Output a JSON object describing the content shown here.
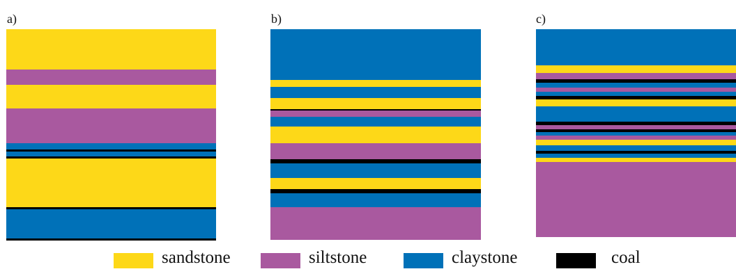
{
  "colors": {
    "sandstone": "#fdd818",
    "siltstone": "#a9599f",
    "claystone": "#0071b8",
    "coal": "#000000"
  },
  "panels": [
    {
      "label": "a)",
      "layers": [
        "sandstone",
        "siltstone",
        "sandstone",
        "siltstone",
        "claystone",
        "coal",
        "claystone",
        "coal",
        "sandstone",
        "coal",
        "claystone",
        "coal"
      ]
    },
    {
      "label": "b)",
      "layers": [
        "claystone",
        "sandstone",
        "claystone",
        "sandstone",
        "coal",
        "siltstone",
        "claystone",
        "sandstone",
        "siltstone",
        "coal",
        "claystone",
        "sandstone",
        "coal",
        "claystone",
        "siltstone"
      ]
    },
    {
      "label": "c)",
      "layers": [
        "claystone",
        "sandstone",
        "siltstone",
        "coal",
        "claystone",
        "siltstone",
        "claystone",
        "coal",
        "sandstone",
        "claystone",
        "coal",
        "siltstone",
        "coal",
        "claystone",
        "siltstone",
        "sandstone",
        "claystone",
        "coal",
        "claystone",
        "sandstone",
        "siltstone"
      ]
    }
  ],
  "legend": [
    {
      "lithology": "sandstone",
      "label": "sandstone"
    },
    {
      "lithology": "siltstone",
      "label": "siltstone"
    },
    {
      "lithology": "claystone",
      "label": "claystone"
    },
    {
      "lithology": "coal",
      "label": "coal"
    }
  ]
}
